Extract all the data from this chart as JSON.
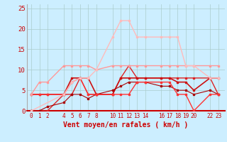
{
  "xlabel": "Vent moyen/en rafales ( km/h )",
  "bg_color": "#cceeff",
  "grid_color": "#aacccc",
  "x_positions": [
    0,
    1,
    2,
    4,
    5,
    6,
    7,
    8,
    10,
    11,
    12,
    13,
    14,
    16,
    17,
    18,
    19,
    20,
    22,
    23
  ],
  "x_labels": [
    "0",
    "1",
    "2",
    "4",
    "5",
    "6",
    "7",
    "8",
    "10",
    "11",
    "12",
    "13",
    "14",
    "16",
    "17",
    "18",
    "19",
    "20",
    "22",
    "23"
  ],
  "ylim": [
    0,
    26
  ],
  "yticks": [
    0,
    5,
    10,
    15,
    20,
    25
  ],
  "lines": [
    {
      "x": [
        0,
        1,
        2,
        4,
        5,
        6,
        7,
        8,
        10,
        11,
        12,
        13,
        14,
        16,
        17,
        18,
        19,
        20,
        22,
        23
      ],
      "y": [
        0,
        0,
        0,
        4,
        4,
        8,
        4,
        4,
        4,
        8,
        11,
        8,
        8,
        8,
        8,
        8,
        8,
        8,
        8,
        4
      ],
      "color": "#dd2222",
      "lw": 1.0,
      "marker": "s",
      "ms": 2.0
    },
    {
      "x": [
        0,
        1,
        2,
        4,
        5,
        6,
        7,
        8,
        10,
        11,
        12,
        13,
        14,
        16,
        17,
        18,
        19,
        20,
        22,
        23
      ],
      "y": [
        4,
        4,
        4,
        4,
        8,
        8,
        8,
        4,
        4,
        8,
        8,
        8,
        8,
        8,
        8,
        7,
        7,
        5,
        8,
        8
      ],
      "color": "#cc1111",
      "lw": 1.2,
      "marker": "s",
      "ms": 2.0
    },
    {
      "x": [
        0,
        1,
        2,
        4,
        5,
        6,
        7,
        8,
        10,
        11,
        12,
        13,
        14,
        16,
        17,
        18,
        19,
        20,
        22,
        23
      ],
      "y": [
        0,
        0,
        1,
        2,
        4,
        4,
        3,
        4,
        5,
        6,
        7,
        7,
        7,
        6,
        6,
        5,
        5,
        4,
        5,
        4
      ],
      "color": "#aa0000",
      "lw": 0.8,
      "marker": "s",
      "ms": 1.8
    },
    {
      "x": [
        0,
        1,
        2,
        4,
        5,
        6,
        7,
        8,
        10,
        11,
        12,
        13,
        14,
        16,
        17,
        18,
        19,
        20,
        22,
        23
      ],
      "y": [
        4,
        4,
        4,
        4,
        7,
        8,
        4,
        4,
        4,
        4,
        4,
        7,
        7,
        7,
        7,
        4,
        4,
        0,
        4,
        4
      ],
      "color": "#ff3333",
      "lw": 1.0,
      "marker": "s",
      "ms": 2.0
    },
    {
      "x": [
        0,
        1,
        2,
        4,
        5,
        6,
        7,
        8,
        10,
        11,
        12,
        13,
        14,
        16,
        17,
        18,
        19,
        20,
        22,
        23
      ],
      "y": [
        4,
        7,
        7,
        11,
        11,
        11,
        11,
        10,
        11,
        11,
        11,
        11,
        11,
        11,
        11,
        11,
        11,
        11,
        11,
        11
      ],
      "color": "#ff9999",
      "lw": 1.0,
      "marker": "s",
      "ms": 2.0
    },
    {
      "x": [
        0,
        4,
        5,
        6,
        7,
        8,
        10,
        11,
        12,
        13,
        14,
        16,
        17,
        18,
        19,
        20,
        22,
        23
      ],
      "y": [
        0,
        4,
        7,
        8,
        8,
        10,
        18,
        22,
        22,
        18,
        18,
        18,
        18,
        18,
        11,
        11,
        8,
        8
      ],
      "color": "#ffbbbb",
      "lw": 1.0,
      "marker": "s",
      "ms": 2.0
    }
  ]
}
